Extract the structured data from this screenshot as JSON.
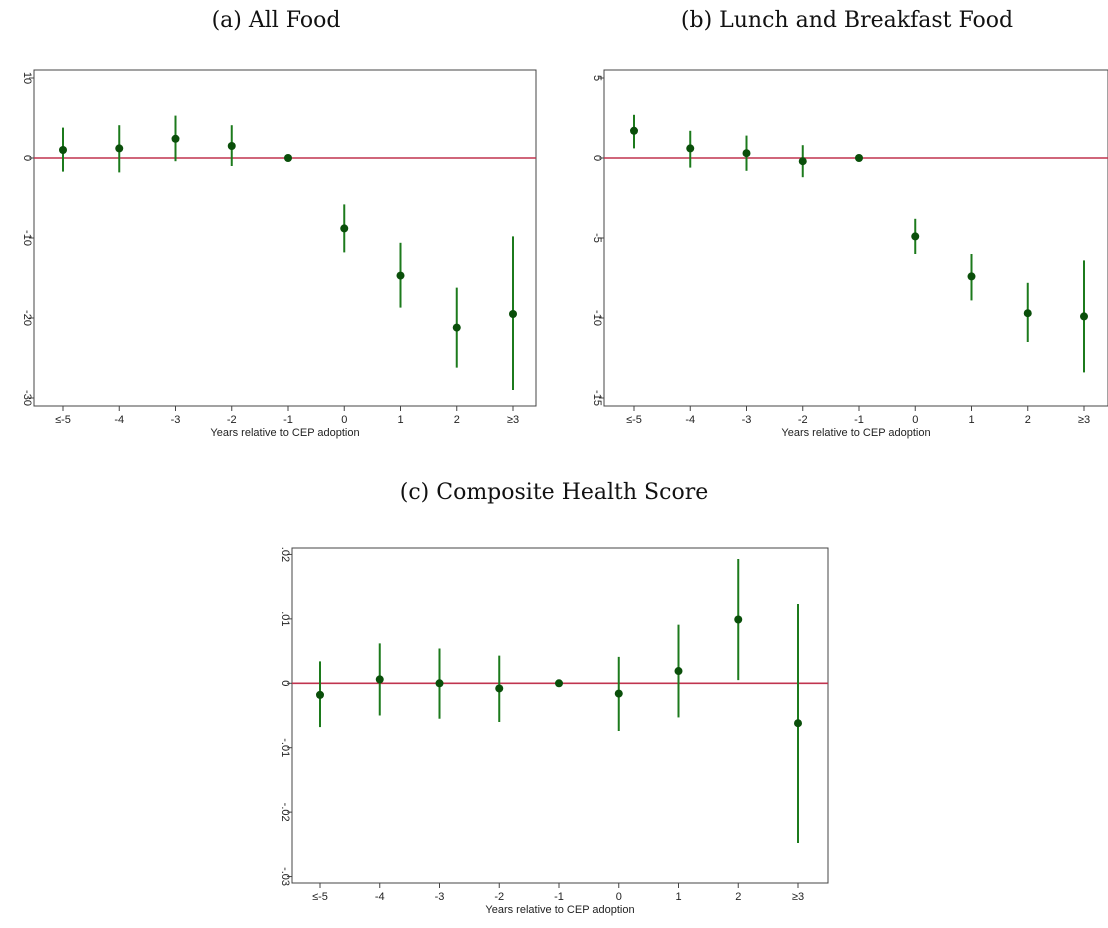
{
  "colors": {
    "ci": "#1c7a1c",
    "point": "#0a4f0a",
    "zero_line": "#c0344f",
    "frame": "#444444"
  },
  "chart_data": [
    {
      "type": "scatter",
      "title": "(a) All Food",
      "xlabel": "Years relative to CEP adoption",
      "ylabel": "",
      "categories": [
        "≤-5",
        "-4",
        "-3",
        "-2",
        "-1",
        "0",
        "1",
        "2",
        "≥3"
      ],
      "ylim": [
        -31,
        11
      ],
      "yticks": [
        10,
        0,
        -10,
        -20,
        -30
      ],
      "ytick_labels": [
        "10",
        "0",
        "-10",
        "-20",
        "-30"
      ],
      "reference_line": 0,
      "estimate": [
        1.0,
        1.2,
        2.4,
        1.5,
        0.0,
        -8.8,
        -14.7,
        -21.2,
        -19.5
      ],
      "ci_low": [
        -1.7,
        -1.8,
        -0.4,
        -1.0,
        0.0,
        -11.8,
        -18.7,
        -26.2,
        -29.0
      ],
      "ci_high": [
        3.8,
        4.1,
        5.3,
        4.1,
        0.0,
        -5.8,
        -10.6,
        -16.2,
        -9.8
      ]
    },
    {
      "type": "scatter",
      "title": "(b) Lunch and Breakfast Food",
      "xlabel": "Years relative to CEP adoption",
      "ylabel": "",
      "categories": [
        "≤-5",
        "-4",
        "-3",
        "-2",
        "-1",
        "0",
        "1",
        "2",
        "≥3"
      ],
      "ylim": [
        -15.5,
        5.5
      ],
      "yticks": [
        5,
        0,
        -5,
        -10,
        -15
      ],
      "ytick_labels": [
        "5",
        "0",
        "-5",
        "-10",
        "-15"
      ],
      "reference_line": 0,
      "estimate": [
        1.7,
        0.6,
        0.3,
        -0.2,
        0.0,
        -4.9,
        -7.4,
        -9.7,
        -9.9
      ],
      "ci_low": [
        0.6,
        -0.6,
        -0.8,
        -1.2,
        0.0,
        -6.0,
        -8.9,
        -11.5,
        -13.4
      ],
      "ci_high": [
        2.7,
        1.7,
        1.4,
        0.8,
        0.0,
        -3.8,
        -6.0,
        -7.8,
        -6.4
      ]
    },
    {
      "type": "scatter",
      "title": "(c) Composite Health Score",
      "xlabel": "Years relative to CEP adoption",
      "ylabel": "",
      "categories": [
        "≤-5",
        "-4",
        "-3",
        "-2",
        "-1",
        "0",
        "1",
        "2",
        "≥3"
      ],
      "ylim": [
        -0.031,
        0.021
      ],
      "yticks": [
        0.02,
        0.01,
        0,
        -0.01,
        -0.02,
        -0.03
      ],
      "ytick_labels": [
        ".02",
        ".01",
        "0",
        "-.01",
        "-.02",
        "-.03"
      ],
      "reference_line": 0,
      "estimate": [
        -0.0018,
        0.0006,
        0.0,
        -0.0008,
        0.0,
        -0.0016,
        0.0019,
        0.0099,
        -0.0062
      ],
      "ci_low": [
        -0.0068,
        -0.005,
        -0.0055,
        -0.006,
        0.0,
        -0.0074,
        -0.0053,
        0.0005,
        -0.0248
      ],
      "ci_high": [
        0.0034,
        0.0062,
        0.0054,
        0.0043,
        0.0,
        0.0041,
        0.0091,
        0.0193,
        0.0123
      ]
    }
  ]
}
